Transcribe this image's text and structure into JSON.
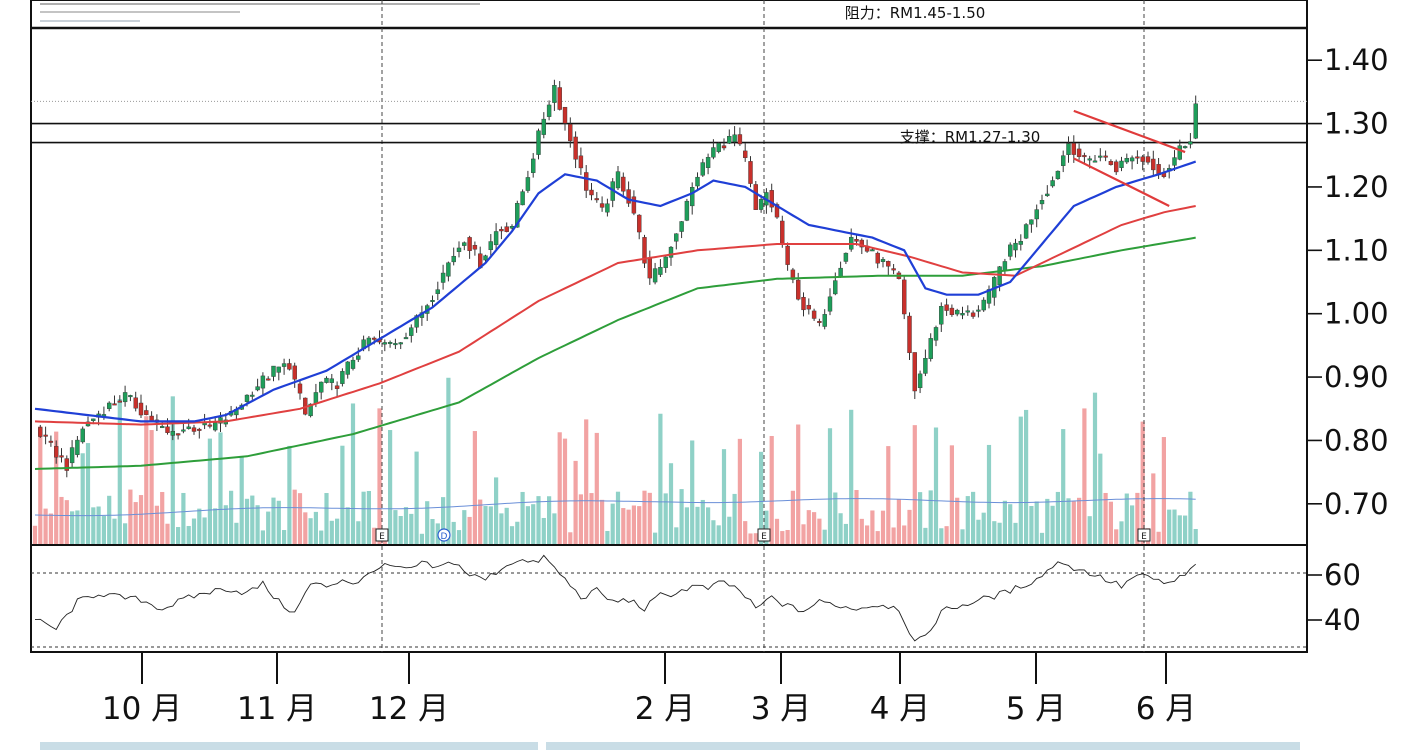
{
  "chart_data": {
    "type": "candlestick",
    "annotations": {
      "resistance": "阻力：RM1.45-1.50",
      "support": "支撑：RM1.27-1.30"
    },
    "price_axis": {
      "ticks": [
        "1.40",
        "1.30",
        "1.20",
        "1.10",
        "1.00",
        "0.90",
        "0.80",
        "0.70"
      ],
      "range": [
        0.635,
        1.495
      ]
    },
    "rsi_axis": {
      "ticks": [
        "60",
        "40"
      ],
      "range": [
        28,
        72
      ],
      "overbought": 64,
      "floor": 28
    },
    "month_labels": [
      "10 月",
      "11 月",
      "12 月",
      "2 月",
      "3 月",
      "4 月",
      "5 月",
      "6 月"
    ],
    "event_markers": [
      "E",
      "D",
      "E",
      "E"
    ],
    "support_levels": [
      1.3,
      1.27
    ],
    "reference_level": 1.335,
    "price_anchors": [
      [
        0,
        0.82
      ],
      [
        3,
        0.79
      ],
      [
        6,
        0.76
      ],
      [
        9,
        0.82
      ],
      [
        13,
        0.85
      ],
      [
        17,
        0.87
      ],
      [
        21,
        0.84
      ],
      [
        25,
        0.81
      ],
      [
        29,
        0.82
      ],
      [
        33,
        0.82
      ],
      [
        37,
        0.84
      ],
      [
        41,
        0.88
      ],
      [
        45,
        0.91
      ],
      [
        48,
        0.92
      ],
      [
        51,
        0.84
      ],
      [
        54,
        0.89
      ],
      [
        57,
        0.89
      ],
      [
        60,
        0.93
      ],
      [
        63,
        0.96
      ],
      [
        66,
        0.95
      ],
      [
        69,
        0.96
      ],
      [
        72,
        0.99
      ],
      [
        75,
        1.03
      ],
      [
        78,
        1.08
      ],
      [
        81,
        1.12
      ],
      [
        84,
        1.08
      ],
      [
        87,
        1.13
      ],
      [
        90,
        1.14
      ],
      [
        93,
        1.22
      ],
      [
        96,
        1.31
      ],
      [
        98,
        1.36
      ],
      [
        100,
        1.3
      ],
      [
        102,
        1.25
      ],
      [
        104,
        1.2
      ],
      [
        107,
        1.16
      ],
      [
        110,
        1.22
      ],
      [
        113,
        1.16
      ],
      [
        116,
        1.05
      ],
      [
        119,
        1.09
      ],
      [
        122,
        1.15
      ],
      [
        125,
        1.22
      ],
      [
        128,
        1.26
      ],
      [
        130,
        1.27
      ],
      [
        132,
        1.28
      ],
      [
        134,
        1.24
      ],
      [
        136,
        1.16
      ],
      [
        138,
        1.19
      ],
      [
        140,
        1.15
      ],
      [
        142,
        1.07
      ],
      [
        145,
        1.01
      ],
      [
        148,
        0.98
      ],
      [
        151,
        1.06
      ],
      [
        154,
        1.12
      ],
      [
        157,
        1.1
      ],
      [
        160,
        1.08
      ],
      [
        163,
        1.05
      ],
      [
        166,
        0.88
      ],
      [
        168,
        0.93
      ],
      [
        171,
        1.01
      ],
      [
        174,
        1.0
      ],
      [
        177,
        1.0
      ],
      [
        180,
        1.03
      ],
      [
        183,
        1.09
      ],
      [
        186,
        1.12
      ],
      [
        189,
        1.17
      ],
      [
        192,
        1.21
      ],
      [
        195,
        1.27
      ],
      [
        198,
        1.24
      ],
      [
        201,
        1.25
      ],
      [
        204,
        1.23
      ],
      [
        207,
        1.25
      ],
      [
        210,
        1.24
      ],
      [
        213,
        1.22
      ],
      [
        216,
        1.26
      ],
      [
        218,
        1.28
      ],
      [
        219,
        1.33
      ]
    ],
    "ma20_anchors": [
      [
        0,
        0.85
      ],
      [
        10,
        0.84
      ],
      [
        20,
        0.83
      ],
      [
        30,
        0.83
      ],
      [
        36,
        0.84
      ],
      [
        45,
        0.88
      ],
      [
        55,
        0.91
      ],
      [
        65,
        0.96
      ],
      [
        75,
        1.01
      ],
      [
        85,
        1.08
      ],
      [
        90,
        1.13
      ],
      [
        95,
        1.19
      ],
      [
        100,
        1.22
      ],
      [
        106,
        1.21
      ],
      [
        112,
        1.18
      ],
      [
        118,
        1.17
      ],
      [
        124,
        1.19
      ],
      [
        128,
        1.21
      ],
      [
        134,
        1.2
      ],
      [
        140,
        1.17
      ],
      [
        146,
        1.14
      ],
      [
        152,
        1.13
      ],
      [
        158,
        1.12
      ],
      [
        164,
        1.1
      ],
      [
        168,
        1.04
      ],
      [
        172,
        1.03
      ],
      [
        178,
        1.03
      ],
      [
        184,
        1.05
      ],
      [
        190,
        1.11
      ],
      [
        196,
        1.17
      ],
      [
        204,
        1.2
      ],
      [
        212,
        1.22
      ],
      [
        219,
        1.24
      ]
    ],
    "ma50_anchors": [
      [
        0,
        0.83
      ],
      [
        20,
        0.825
      ],
      [
        36,
        0.83
      ],
      [
        50,
        0.85
      ],
      [
        65,
        0.89
      ],
      [
        80,
        0.94
      ],
      [
        95,
        1.02
      ],
      [
        110,
        1.08
      ],
      [
        125,
        1.1
      ],
      [
        140,
        1.11
      ],
      [
        155,
        1.11
      ],
      [
        165,
        1.09
      ],
      [
        175,
        1.065
      ],
      [
        185,
        1.06
      ],
      [
        195,
        1.1
      ],
      [
        205,
        1.14
      ],
      [
        213,
        1.16
      ],
      [
        219,
        1.17
      ]
    ],
    "ma200_anchors": [
      [
        0,
        0.755
      ],
      [
        20,
        0.76
      ],
      [
        40,
        0.775
      ],
      [
        60,
        0.81
      ],
      [
        80,
        0.86
      ],
      [
        95,
        0.93
      ],
      [
        110,
        0.99
      ],
      [
        125,
        1.04
      ],
      [
        140,
        1.055
      ],
      [
        160,
        1.06
      ],
      [
        175,
        1.06
      ],
      [
        190,
        1.075
      ],
      [
        205,
        1.1
      ],
      [
        219,
        1.12
      ]
    ],
    "rsi_anchors": [
      [
        0,
        40
      ],
      [
        4,
        36
      ],
      [
        8,
        48
      ],
      [
        12,
        52
      ],
      [
        16,
        50
      ],
      [
        20,
        49
      ],
      [
        24,
        45
      ],
      [
        28,
        49
      ],
      [
        32,
        52
      ],
      [
        36,
        54
      ],
      [
        40,
        52
      ],
      [
        43,
        56
      ],
      [
        46,
        48
      ],
      [
        49,
        43
      ],
      [
        52,
        56
      ],
      [
        55,
        55
      ],
      [
        58,
        58
      ],
      [
        61,
        56
      ],
      [
        64,
        63
      ],
      [
        67,
        64
      ],
      [
        70,
        62
      ],
      [
        73,
        65
      ],
      [
        76,
        63
      ],
      [
        79,
        66
      ],
      [
        82,
        60
      ],
      [
        85,
        58
      ],
      [
        88,
        63
      ],
      [
        91,
        67
      ],
      [
        94,
        65
      ],
      [
        96,
        68
      ],
      [
        98,
        63
      ],
      [
        100,
        58
      ],
      [
        103,
        50
      ],
      [
        106,
        53
      ],
      [
        109,
        48
      ],
      [
        112,
        49
      ],
      [
        115,
        45
      ],
      [
        118,
        51
      ],
      [
        121,
        52
      ],
      [
        124,
        55
      ],
      [
        127,
        54
      ],
      [
        130,
        57
      ],
      [
        133,
        53
      ],
      [
        136,
        45
      ],
      [
        139,
        50
      ],
      [
        142,
        46
      ],
      [
        145,
        44
      ],
      [
        148,
        48
      ],
      [
        151,
        47
      ],
      [
        154,
        45
      ],
      [
        157,
        46
      ],
      [
        160,
        47
      ],
      [
        163,
        45
      ],
      [
        166,
        30
      ],
      [
        168,
        32
      ],
      [
        171,
        44
      ],
      [
        174,
        46
      ],
      [
        177,
        48
      ],
      [
        180,
        50
      ],
      [
        183,
        52
      ],
      [
        186,
        55
      ],
      [
        189,
        58
      ],
      [
        192,
        64
      ],
      [
        194,
        66
      ],
      [
        196,
        63
      ],
      [
        199,
        61
      ],
      [
        202,
        58
      ],
      [
        205,
        55
      ],
      [
        208,
        60
      ],
      [
        211,
        58
      ],
      [
        214,
        56
      ],
      [
        217,
        60
      ],
      [
        219,
        64
      ]
    ]
  }
}
